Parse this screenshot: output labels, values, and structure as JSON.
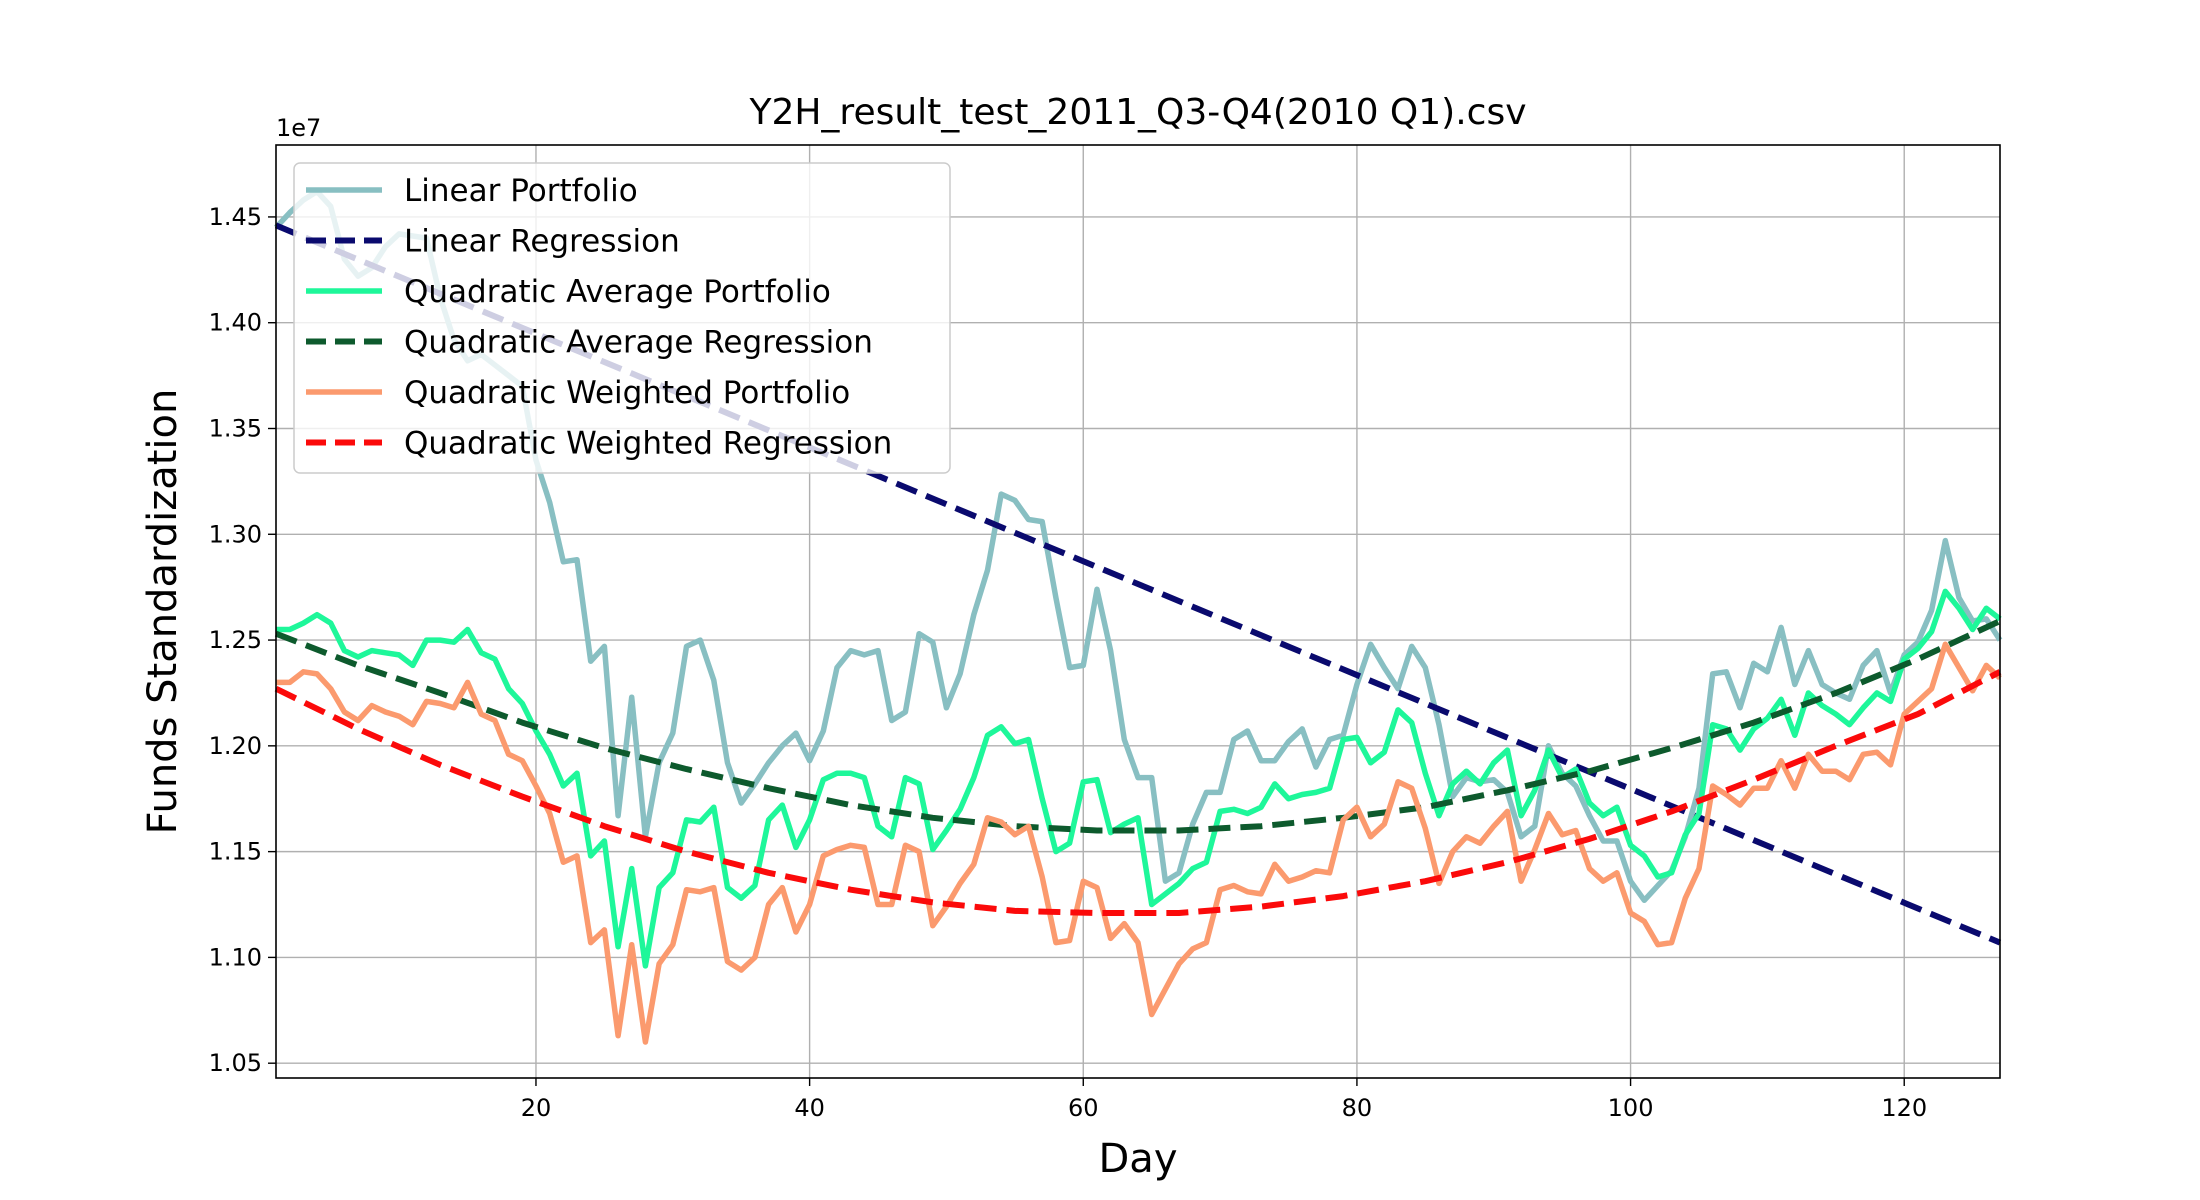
{
  "chart_data": {
    "type": "line",
    "title": "Y2H_result_test_2011_Q3-Q4(2010 Q1).csv",
    "xlabel": "Day",
    "ylabel": "Funds Standardization",
    "y_offset_label": "1e7",
    "xlim": [
      1,
      127
    ],
    "ylim": [
      1.043,
      1.484
    ],
    "xticks": [
      20,
      40,
      60,
      80,
      100,
      120
    ],
    "xtick_labels": [
      "20",
      "40",
      "60",
      "80",
      "100",
      "120"
    ],
    "yticks": [
      1.05,
      1.1,
      1.15,
      1.2,
      1.25,
      1.3,
      1.35,
      1.4,
      1.45
    ],
    "ytick_labels": [
      "1.05",
      "1.10",
      "1.15",
      "1.20",
      "1.25",
      "1.30",
      "1.35",
      "1.40",
      "1.45"
    ],
    "grid": true,
    "legend_position": "upper-left",
    "series": [
      {
        "name": "Linear Portfolio",
        "color": "#88bfc2",
        "style": "solid",
        "x": [
          1,
          2,
          3,
          4,
          5,
          6,
          7,
          8,
          9,
          10,
          11,
          12,
          13,
          14,
          15,
          16,
          17,
          18,
          19,
          20,
          21,
          22,
          23,
          24,
          25,
          26,
          27,
          28,
          29,
          30,
          31,
          32,
          33,
          34,
          35,
          36,
          37,
          38,
          39,
          40,
          41,
          42,
          43,
          44,
          45,
          46,
          47,
          48,
          49,
          50,
          51,
          52,
          53,
          54,
          55,
          56,
          57,
          58,
          59,
          60,
          61,
          62,
          63,
          64,
          65,
          66,
          67,
          68,
          69,
          70,
          71,
          72,
          73,
          74,
          75,
          76,
          77,
          78,
          79,
          80,
          81,
          82,
          83,
          84,
          85,
          86,
          87,
          88,
          89,
          90,
          91,
          92,
          93,
          94,
          95,
          96,
          97,
          98,
          99,
          100,
          101,
          102,
          103,
          104,
          105,
          106,
          107,
          108,
          109,
          110,
          111,
          112,
          113,
          114,
          115,
          116,
          117,
          118,
          119,
          120,
          121,
          122,
          123,
          124,
          125,
          126,
          127
        ],
        "values": [
          1.445,
          1.452,
          1.458,
          1.462,
          1.455,
          1.43,
          1.422,
          1.426,
          1.436,
          1.442,
          1.441,
          1.44,
          1.412,
          1.392,
          1.382,
          1.385,
          1.38,
          1.375,
          1.37,
          1.335,
          1.315,
          1.287,
          1.288,
          1.24,
          1.247,
          1.167,
          1.223,
          1.157,
          1.192,
          1.206,
          1.247,
          1.25,
          1.231,
          1.192,
          1.173,
          1.182,
          1.192,
          1.2,
          1.206,
          1.193,
          1.207,
          1.237,
          1.245,
          1.243,
          1.245,
          1.212,
          1.216,
          1.253,
          1.249,
          1.218,
          1.234,
          1.262,
          1.283,
          1.319,
          1.316,
          1.307,
          1.306,
          1.27,
          1.237,
          1.238,
          1.274,
          1.245,
          1.203,
          1.185,
          1.185,
          1.136,
          1.14,
          1.163,
          1.178,
          1.178,
          1.203,
          1.207,
          1.193,
          1.193,
          1.202,
          1.208,
          1.19,
          1.203,
          1.205,
          1.229,
          1.248,
          1.237,
          1.227,
          1.247,
          1.237,
          1.21,
          1.176,
          1.185,
          1.183,
          1.184,
          1.178,
          1.157,
          1.162,
          1.2,
          1.187,
          1.181,
          1.167,
          1.155,
          1.155,
          1.136,
          1.127,
          1.134,
          1.141,
          1.157,
          1.18,
          1.234,
          1.235,
          1.218,
          1.239,
          1.235,
          1.256,
          1.229,
          1.245,
          1.229,
          1.225,
          1.222,
          1.238,
          1.245,
          1.225,
          1.243,
          1.249,
          1.264,
          1.297,
          1.27,
          1.259,
          1.26,
          1.25
        ]
      },
      {
        "name": "Linear Regression",
        "color": "#0a0a6e",
        "style": "dashed",
        "x": [
          1,
          127
        ],
        "values": [
          1.446,
          1.107
        ]
      },
      {
        "name": "Quadratic Average Portfolio",
        "color": "#1ef79a",
        "style": "solid",
        "x": [
          1,
          2,
          3,
          4,
          5,
          6,
          7,
          8,
          9,
          10,
          11,
          12,
          13,
          14,
          15,
          16,
          17,
          18,
          19,
          20,
          21,
          22,
          23,
          24,
          25,
          26,
          27,
          28,
          29,
          30,
          31,
          32,
          33,
          34,
          35,
          36,
          37,
          38,
          39,
          40,
          41,
          42,
          43,
          44,
          45,
          46,
          47,
          48,
          49,
          50,
          51,
          52,
          53,
          54,
          55,
          56,
          57,
          58,
          59,
          60,
          61,
          62,
          63,
          64,
          65,
          66,
          67,
          68,
          69,
          70,
          71,
          72,
          73,
          74,
          75,
          76,
          77,
          78,
          79,
          80,
          81,
          82,
          83,
          84,
          85,
          86,
          87,
          88,
          89,
          90,
          91,
          92,
          93,
          94,
          95,
          96,
          97,
          98,
          99,
          100,
          101,
          102,
          103,
          104,
          105,
          106,
          107,
          108,
          109,
          110,
          111,
          112,
          113,
          114,
          115,
          116,
          117,
          118,
          119,
          120,
          121,
          122,
          123,
          124,
          125,
          126,
          127
        ],
        "values": [
          1.255,
          1.255,
          1.258,
          1.262,
          1.258,
          1.245,
          1.242,
          1.245,
          1.244,
          1.243,
          1.238,
          1.25,
          1.25,
          1.249,
          1.255,
          1.244,
          1.241,
          1.227,
          1.22,
          1.207,
          1.196,
          1.181,
          1.187,
          1.148,
          1.155,
          1.105,
          1.142,
          1.096,
          1.133,
          1.14,
          1.165,
          1.164,
          1.171,
          1.133,
          1.128,
          1.134,
          1.165,
          1.172,
          1.152,
          1.165,
          1.184,
          1.187,
          1.187,
          1.185,
          1.162,
          1.157,
          1.185,
          1.182,
          1.151,
          1.16,
          1.17,
          1.185,
          1.205,
          1.209,
          1.201,
          1.203,
          1.175,
          1.15,
          1.154,
          1.183,
          1.184,
          1.159,
          1.163,
          1.166,
          1.125,
          1.13,
          1.135,
          1.142,
          1.145,
          1.169,
          1.17,
          1.168,
          1.171,
          1.182,
          1.175,
          1.177,
          1.178,
          1.18,
          1.203,
          1.204,
          1.192,
          1.197,
          1.217,
          1.211,
          1.187,
          1.167,
          1.182,
          1.188,
          1.182,
          1.192,
          1.198,
          1.167,
          1.179,
          1.198,
          1.185,
          1.189,
          1.173,
          1.167,
          1.171,
          1.153,
          1.148,
          1.138,
          1.14,
          1.158,
          1.168,
          1.21,
          1.208,
          1.198,
          1.208,
          1.213,
          1.222,
          1.205,
          1.225,
          1.219,
          1.215,
          1.21,
          1.218,
          1.225,
          1.221,
          1.241,
          1.246,
          1.254,
          1.273,
          1.265,
          1.255,
          1.265,
          1.26
        ]
      },
      {
        "name": "Quadratic Average Regression",
        "color": "#0d5a2d",
        "style": "dashed",
        "x": [
          1,
          7,
          13,
          19,
          25,
          31,
          37,
          43,
          49,
          55,
          61,
          67,
          73,
          79,
          85,
          91,
          97,
          103,
          109,
          115,
          121,
          127
        ],
        "values": [
          1.253,
          1.238,
          1.225,
          1.211,
          1.199,
          1.189,
          1.18,
          1.172,
          1.166,
          1.162,
          1.16,
          1.16,
          1.162,
          1.166,
          1.171,
          1.179,
          1.188,
          1.199,
          1.211,
          1.225,
          1.241,
          1.259
        ]
      },
      {
        "name": "Quadratic Weighted Portfolio",
        "color": "#fb9a6e",
        "style": "solid",
        "x": [
          1,
          2,
          3,
          4,
          5,
          6,
          7,
          8,
          9,
          10,
          11,
          12,
          13,
          14,
          15,
          16,
          17,
          18,
          19,
          20,
          21,
          22,
          23,
          24,
          25,
          26,
          27,
          28,
          29,
          30,
          31,
          32,
          33,
          34,
          35,
          36,
          37,
          38,
          39,
          40,
          41,
          42,
          43,
          44,
          45,
          46,
          47,
          48,
          49,
          50,
          51,
          52,
          53,
          54,
          55,
          56,
          57,
          58,
          59,
          60,
          61,
          62,
          63,
          64,
          65,
          66,
          67,
          68,
          69,
          70,
          71,
          72,
          73,
          74,
          75,
          76,
          77,
          78,
          79,
          80,
          81,
          82,
          83,
          84,
          85,
          86,
          87,
          88,
          89,
          90,
          91,
          92,
          93,
          94,
          95,
          96,
          97,
          98,
          99,
          100,
          101,
          102,
          103,
          104,
          105,
          106,
          107,
          108,
          109,
          110,
          111,
          112,
          113,
          114,
          115,
          116,
          117,
          118,
          119,
          120,
          121,
          122,
          123,
          124,
          125,
          126,
          127
        ],
        "values": [
          1.23,
          1.23,
          1.235,
          1.234,
          1.227,
          1.216,
          1.212,
          1.219,
          1.216,
          1.214,
          1.21,
          1.221,
          1.22,
          1.218,
          1.23,
          1.215,
          1.212,
          1.196,
          1.193,
          1.181,
          1.168,
          1.145,
          1.148,
          1.107,
          1.113,
          1.063,
          1.106,
          1.06,
          1.097,
          1.106,
          1.132,
          1.131,
          1.133,
          1.098,
          1.094,
          1.1,
          1.125,
          1.133,
          1.112,
          1.125,
          1.148,
          1.151,
          1.153,
          1.152,
          1.125,
          1.125,
          1.153,
          1.15,
          1.115,
          1.124,
          1.135,
          1.144,
          1.166,
          1.164,
          1.158,
          1.162,
          1.138,
          1.107,
          1.108,
          1.136,
          1.133,
          1.109,
          1.116,
          1.107,
          1.073,
          1.085,
          1.097,
          1.104,
          1.107,
          1.132,
          1.134,
          1.131,
          1.13,
          1.144,
          1.136,
          1.138,
          1.141,
          1.14,
          1.165,
          1.171,
          1.157,
          1.163,
          1.183,
          1.18,
          1.161,
          1.135,
          1.15,
          1.157,
          1.154,
          1.162,
          1.169,
          1.136,
          1.151,
          1.168,
          1.158,
          1.16,
          1.142,
          1.136,
          1.14,
          1.121,
          1.117,
          1.106,
          1.107,
          1.128,
          1.142,
          1.181,
          1.177,
          1.172,
          1.18,
          1.18,
          1.193,
          1.18,
          1.196,
          1.188,
          1.188,
          1.184,
          1.196,
          1.197,
          1.191,
          1.215,
          1.221,
          1.227,
          1.248,
          1.237,
          1.226,
          1.238,
          1.232
        ]
      },
      {
        "name": "Quadratic Weighted Regression",
        "color": "#fb0a0a",
        "style": "dashed",
        "x": [
          1,
          7,
          13,
          19,
          25,
          31,
          37,
          43,
          49,
          55,
          61,
          67,
          73,
          79,
          85,
          91,
          97,
          103,
          109,
          115,
          121,
          127
        ],
        "values": [
          1.227,
          1.208,
          1.191,
          1.176,
          1.162,
          1.15,
          1.14,
          1.132,
          1.126,
          1.122,
          1.121,
          1.121,
          1.124,
          1.129,
          1.136,
          1.145,
          1.156,
          1.169,
          1.184,
          1.2,
          1.215,
          1.235
        ]
      }
    ]
  }
}
